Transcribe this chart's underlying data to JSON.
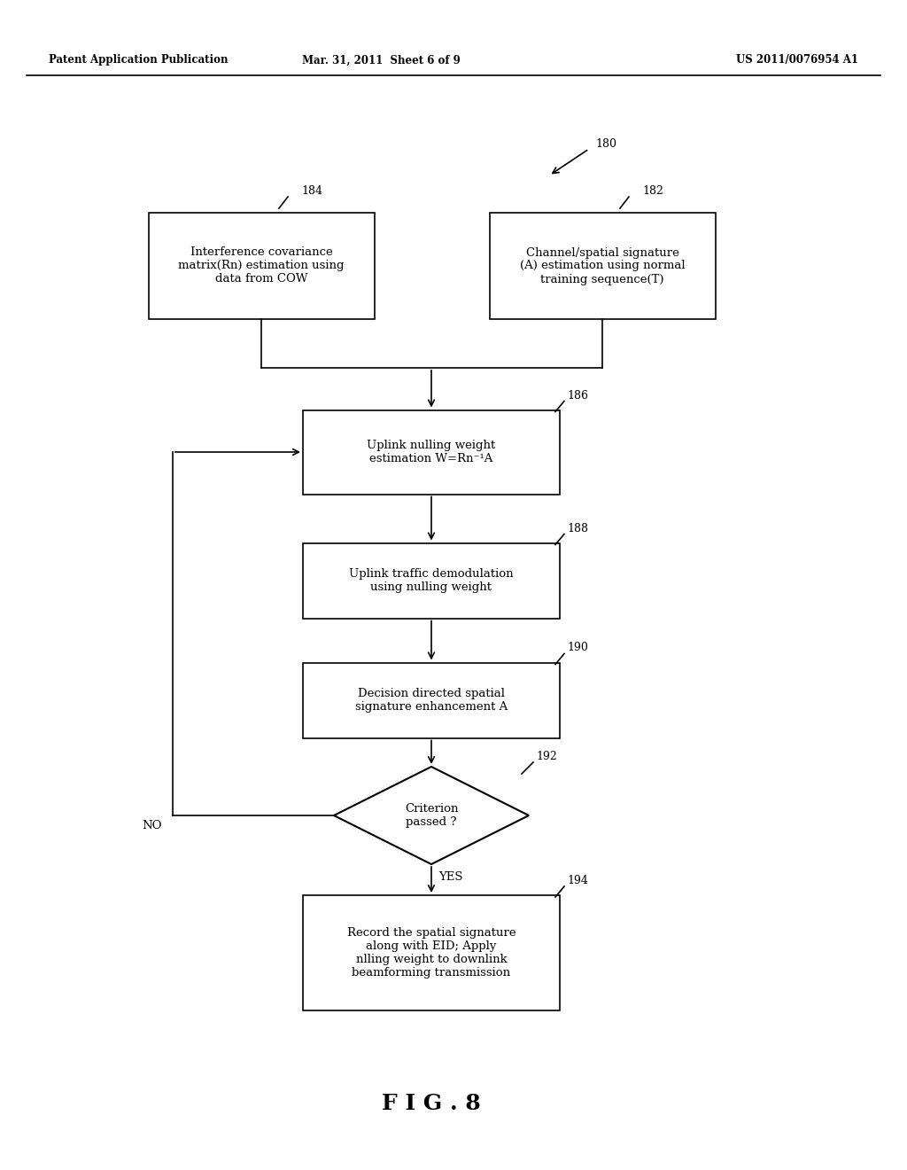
{
  "header_left": "Patent Application Publication",
  "header_mid": "Mar. 31, 2011  Sheet 6 of 9",
  "header_right": "US 2011/0076954 A1",
  "fig_label": "F I G . 8",
  "label_180": "180",
  "label_182": "182",
  "label_184": "184",
  "label_186": "186",
  "label_188": "188",
  "label_190": "190",
  "label_192": "192",
  "label_194": "194",
  "box184_text": "Interference covariance\nmatrix(Rn) estimation using\ndata from COW",
  "box182_text": "Channel/spatial signature\n(A) estimation using normal\ntraining sequence(T)",
  "box186_text": "Uplink nulling weight\nestimation W=Rn⁻¹A",
  "box188_text": "Uplink traffic demodulation\nusing nulling weight",
  "box190_text": "Decision directed spatial\nsignature enhancement A",
  "diamond192_text": "Criterion\npassed ?",
  "box194_text": "Record the spatial signature\nalong with EID; Apply\nnlling weight to downlink\nbeamforming transmission",
  "no_label": "NO",
  "yes_label": "YES",
  "bg_color": "#ffffff",
  "text_color": "#000000",
  "arrow_color": "#000000"
}
